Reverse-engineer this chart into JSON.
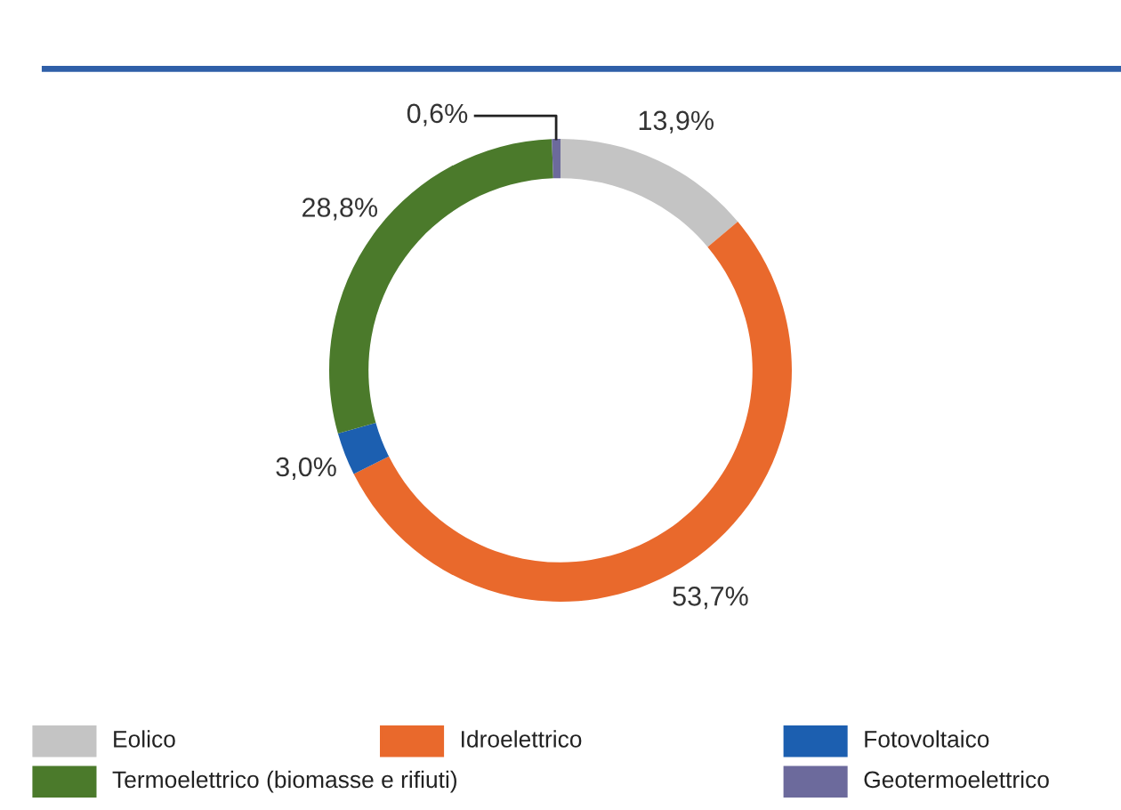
{
  "chart_data": {
    "type": "donut",
    "categories": [
      "Eolico",
      "Idroelettrico",
      "Fotovoltaico",
      "Termoelettrico (biomasse e rifiuti)",
      "Geotermoelettrico"
    ],
    "values": [
      13.9,
      53.7,
      3.0,
      28.8,
      0.6
    ],
    "value_labels": [
      "13,9%",
      "53,7%",
      "3,0%",
      "28,8%",
      "0,6%"
    ],
    "colors": [
      "#c4c4c4",
      "#e9692c",
      "#1c5fb0",
      "#4b7a2b",
      "#6c6a9c"
    ],
    "legend": "bottom"
  }
}
